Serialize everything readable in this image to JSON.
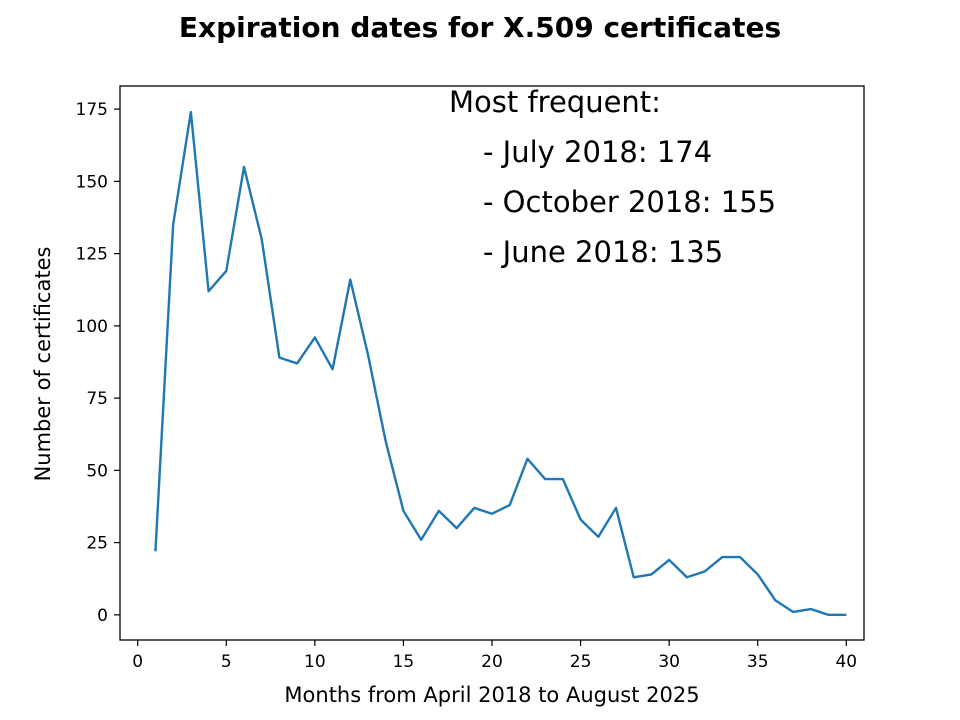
{
  "chart_data": {
    "type": "line",
    "title": "Expiration dates for X.509 certificates",
    "xlabel": "Months from April 2018 to August 2025",
    "ylabel": "Number of certificates",
    "xlim": [
      -1,
      41
    ],
    "ylim": [
      -8.7,
      183
    ],
    "xticks": [
      0,
      5,
      10,
      15,
      20,
      25,
      30,
      35,
      40
    ],
    "yticks": [
      0,
      25,
      50,
      75,
      100,
      125,
      150,
      175
    ],
    "grid": false,
    "legend": null,
    "series_color": "#1f77b4",
    "x": [
      1,
      2,
      3,
      4,
      5,
      6,
      7,
      8,
      9,
      10,
      11,
      12,
      13,
      14,
      15,
      16,
      17,
      18,
      19,
      20,
      21,
      22,
      23,
      24,
      25,
      26,
      27,
      28,
      29,
      30,
      31,
      32,
      33,
      34,
      35,
      36,
      37,
      38,
      39,
      40
    ],
    "values": [
      22,
      135,
      174,
      112,
      119,
      155,
      130,
      89,
      87,
      96,
      85,
      116,
      90,
      60,
      36,
      26,
      36,
      30,
      37,
      35,
      38,
      54,
      47,
      47,
      33,
      27,
      37,
      13,
      14,
      19,
      13,
      15,
      20,
      20,
      14,
      5,
      1,
      2,
      0,
      0
    ],
    "annotation": {
      "heading": "Most frequent:",
      "lines": [
        "- July 2018: 174",
        "- October 2018: 155",
        "- June 2018: 135"
      ]
    }
  }
}
